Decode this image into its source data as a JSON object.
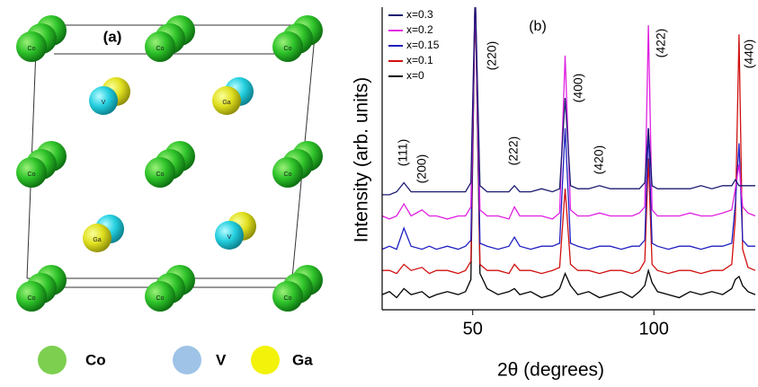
{
  "structure": {
    "label": "(a)",
    "co_atoms": [
      "Co",
      "Co",
      "Co",
      "Co",
      "Co",
      "Co",
      "Co",
      "Co",
      "Co"
    ],
    "pairs": [
      "V",
      "Ga",
      "Ga",
      "V"
    ],
    "legend": [
      "Co",
      "V",
      "Ga"
    ]
  },
  "chart_data": {
    "type": "line",
    "label": "(b)",
    "x_label": "2θ (degrees)",
    "y_label": "Intensity (arb. units)",
    "xlim": [
      25,
      128
    ],
    "xticks": [
      50,
      100
    ],
    "ylim": [
      0,
      100
    ],
    "annotations": [
      "(111)",
      "(200)",
      "(220)",
      "(222)",
      "(400)",
      "(420)",
      "(422)",
      "(440)"
    ],
    "x": [
      25,
      27,
      29,
      31,
      33,
      36,
      38,
      40,
      43,
      46,
      48,
      49.5,
      50.7,
      52,
      54,
      57,
      60,
      61.5,
      63,
      66,
      69,
      72,
      74,
      75.5,
      77,
      79,
      82,
      85,
      88,
      91,
      94,
      96,
      97.5,
      98.5,
      99.5,
      101,
      104,
      107,
      110,
      113,
      116,
      119,
      121.5,
      122.5,
      123.5,
      124.5,
      126,
      128
    ],
    "series": [
      {
        "name": "x=0.3",
        "color": "#1a1a70",
        "values": [
          38,
          38,
          39,
          42,
          39,
          39,
          39,
          39,
          39,
          39,
          39,
          42,
          105,
          41,
          39,
          39,
          39,
          41,
          39,
          39,
          40,
          39,
          40,
          70,
          41,
          40,
          40,
          41,
          40,
          40,
          40,
          40,
          42,
          60,
          41,
          40,
          40,
          40,
          40,
          41,
          40,
          41,
          41,
          43,
          41,
          41,
          41,
          41
        ]
      },
      {
        "name": "x=0.2",
        "color": "#e020e0",
        "values": [
          31,
          30,
          31,
          35,
          31,
          33,
          31,
          31,
          30,
          31,
          31,
          34,
          105,
          33,
          31,
          31,
          30,
          34,
          31,
          31,
          31,
          30,
          32,
          84,
          33,
          31,
          31,
          32,
          31,
          31,
          31,
          32,
          34,
          94,
          33,
          31,
          31,
          31,
          32,
          31,
          31,
          32,
          33,
          40,
          48,
          34,
          32,
          31
        ]
      },
      {
        "name": "x=0.15",
        "color": "#2020c0",
        "values": [
          20,
          21,
          20,
          27,
          21,
          20,
          21,
          20,
          21,
          20,
          21,
          23,
          105,
          22,
          21,
          20,
          21,
          24,
          21,
          20,
          21,
          21,
          22,
          60,
          22,
          21,
          20,
          21,
          21,
          20,
          21,
          21,
          23,
          60,
          22,
          21,
          20,
          21,
          21,
          20,
          21,
          21,
          22,
          35,
          55,
          23,
          21,
          21
        ]
      },
      {
        "name": "x=0.1",
        "color": "#d01010",
        "values": [
          13,
          13,
          12,
          15,
          13,
          14,
          12,
          13,
          13,
          12,
          13,
          16,
          105,
          15,
          13,
          13,
          12,
          15,
          13,
          13,
          12,
          13,
          14,
          40,
          15,
          13,
          13,
          12,
          13,
          13,
          12,
          13,
          16,
          50,
          15,
          13,
          12,
          13,
          13,
          12,
          13,
          13,
          15,
          30,
          91,
          20,
          14,
          13
        ]
      },
      {
        "name": "x=0",
        "color": "#000000",
        "values": [
          5,
          6,
          4,
          7,
          5,
          6,
          4,
          5,
          6,
          5,
          6,
          10,
          105,
          12,
          7,
          5,
          6,
          7,
          5,
          6,
          4,
          5,
          7,
          12,
          8,
          5,
          6,
          4,
          5,
          6,
          4,
          6,
          8,
          13,
          9,
          6,
          5,
          4,
          6,
          5,
          6,
          5,
          7,
          10,
          11,
          8,
          6,
          5
        ]
      }
    ]
  }
}
